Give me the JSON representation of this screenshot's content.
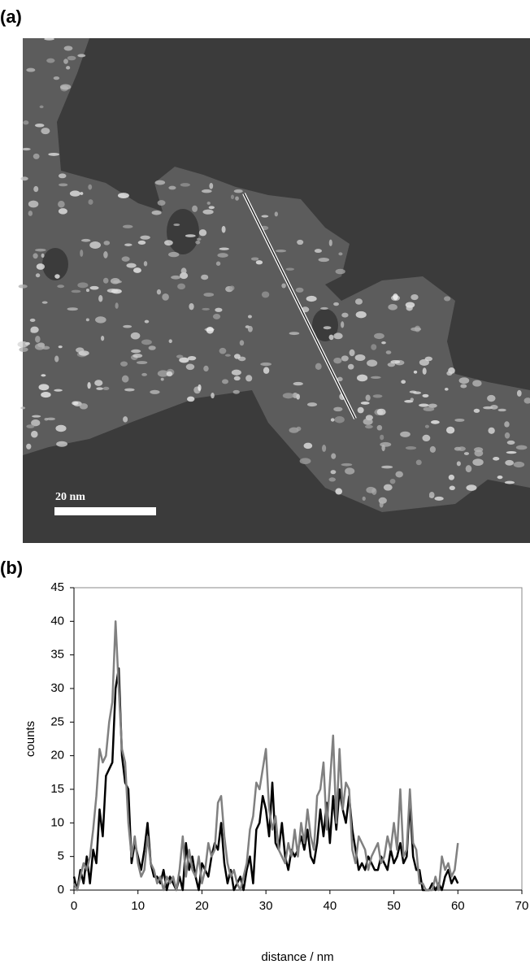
{
  "panel_labels": {
    "a": "(a)",
    "b": "(b)"
  },
  "image": {
    "scale_label": "20 nm"
  },
  "chart_data": {
    "type": "line",
    "x_label": "distance / nm",
    "y_label": "counts",
    "x": [
      0,
      0.5,
      1,
      1.5,
      2,
      2.5,
      3,
      3.5,
      4,
      4.5,
      5,
      5.5,
      6,
      6.5,
      7,
      7.5,
      8,
      8.5,
      9,
      9.5,
      10,
      10.5,
      11,
      11.5,
      12,
      12.5,
      13,
      13.5,
      14,
      14.5,
      15,
      15.5,
      16,
      16.5,
      17,
      17.5,
      18,
      18.5,
      19,
      19.5,
      20,
      20.5,
      21,
      21.5,
      22,
      22.5,
      23,
      23.5,
      24,
      24.5,
      25,
      25.5,
      26,
      26.5,
      27,
      27.5,
      28,
      28.5,
      29,
      29.5,
      30,
      30.5,
      31,
      31.5,
      32,
      32.5,
      33,
      33.5,
      34,
      34.5,
      35,
      35.5,
      36,
      36.5,
      37,
      37.5,
      38,
      38.5,
      39,
      39.5,
      40,
      40.5,
      41,
      41.5,
      42,
      42.5,
      43,
      43.5,
      44,
      44.5,
      45,
      45.5,
      46,
      46.5,
      47,
      47.5,
      48,
      48.5,
      49,
      49.5,
      50,
      50.5,
      51,
      51.5,
      52,
      52.5,
      53,
      53.5,
      54,
      54.5,
      55,
      55.5,
      56,
      56.5,
      57,
      57.5,
      58,
      58.5,
      59,
      59.5,
      60
    ],
    "series": [
      {
        "color": "#000000",
        "values": [
          2,
          0,
          3,
          1,
          5,
          1,
          6,
          4,
          12,
          8,
          17,
          18,
          19,
          30,
          33,
          20,
          16,
          15,
          4,
          7,
          5,
          3,
          6,
          10,
          4,
          2,
          2,
          1,
          3,
          0,
          2,
          1,
          0,
          2,
          0,
          7,
          3,
          5,
          2,
          0,
          4,
          3,
          2,
          5,
          7,
          6,
          10,
          4,
          1,
          3,
          0,
          1,
          2,
          0,
          3,
          5,
          1,
          9,
          10,
          14,
          12,
          8,
          16,
          7,
          6,
          10,
          5,
          3,
          6,
          5,
          6,
          8,
          6,
          9,
          5,
          4,
          7,
          12,
          8,
          13,
          7,
          14,
          9,
          15,
          12,
          10,
          14,
          9,
          6,
          3,
          4,
          3,
          5,
          4,
          3,
          3,
          5,
          4,
          3,
          6,
          4,
          5,
          7,
          4,
          5,
          13,
          5,
          3,
          3,
          0,
          0,
          0,
          1,
          0,
          1,
          0,
          2,
          3,
          1,
          2,
          1
        ]
      },
      {
        "color": "#808080",
        "values": [
          1,
          0,
          2,
          4,
          3,
          5,
          9,
          14,
          21,
          19,
          20,
          25,
          28,
          40,
          30,
          21,
          19,
          10,
          5,
          8,
          4,
          2,
          3,
          8,
          4,
          3,
          1,
          2,
          0,
          2,
          1,
          2,
          0,
          3,
          8,
          2,
          6,
          3,
          2,
          5,
          1,
          3,
          7,
          5,
          6,
          13,
          14,
          8,
          4,
          2,
          3,
          1,
          0,
          2,
          4,
          9,
          11,
          16,
          15,
          18,
          21,
          12,
          9,
          11,
          6,
          5,
          4,
          7,
          5,
          9,
          5,
          10,
          7,
          12,
          8,
          6,
          14,
          15,
          19,
          9,
          16,
          23,
          10,
          21,
          12,
          16,
          15,
          6,
          4,
          8,
          7,
          6,
          3,
          5,
          6,
          7,
          4,
          5,
          8,
          6,
          10,
          6,
          15,
          5,
          6,
          15,
          7,
          6,
          1,
          1,
          0,
          0,
          0,
          2,
          0,
          5,
          3,
          4,
          2,
          3,
          7
        ]
      }
    ],
    "xlim": [
      0,
      70
    ],
    "xticks": [
      0,
      10,
      20,
      30,
      40,
      50,
      60,
      70
    ],
    "ylim": [
      0,
      45
    ],
    "yticks": [
      0,
      5,
      10,
      15,
      20,
      25,
      30,
      35,
      40,
      45
    ]
  }
}
